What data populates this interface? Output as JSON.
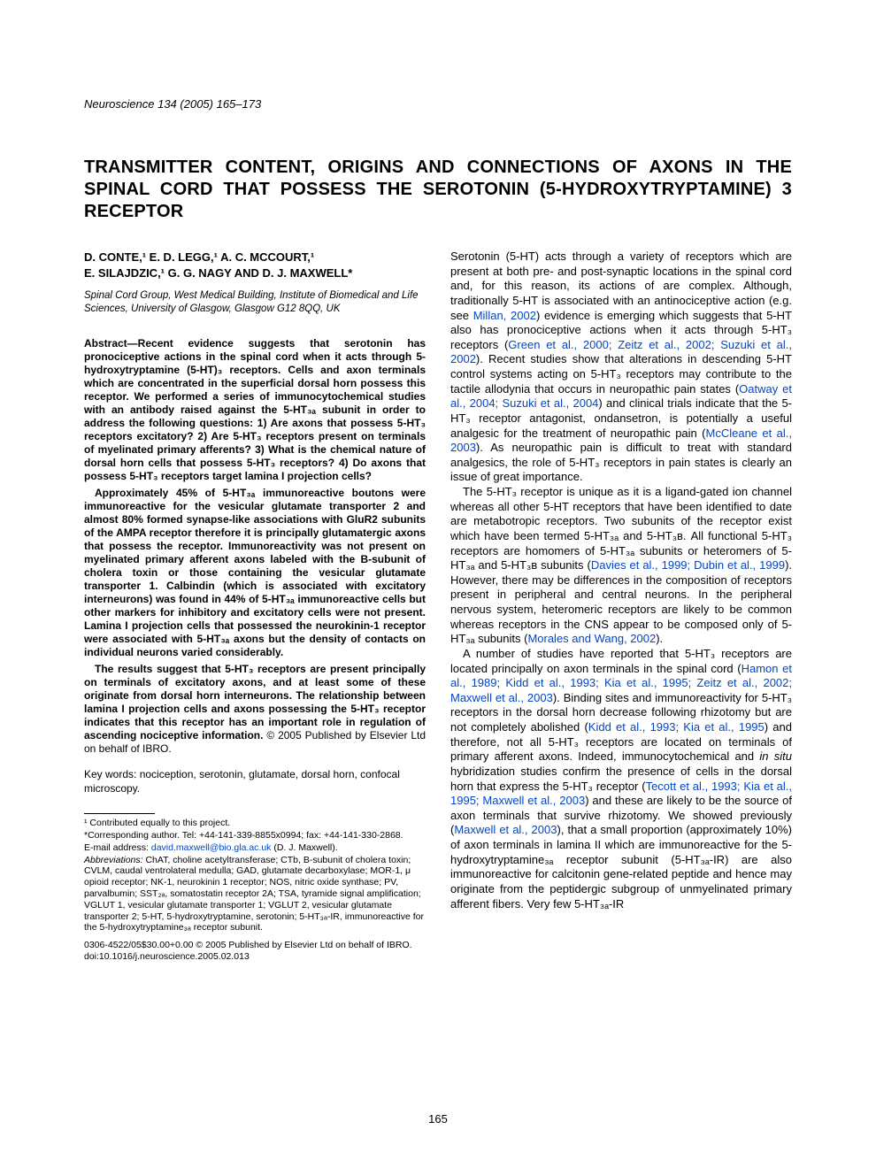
{
  "journal_header": "Neuroscience 134 (2005) 165–173",
  "title": "TRANSMITTER CONTENT, ORIGINS AND CONNECTIONS OF AXONS IN THE SPINAL CORD THAT POSSESS THE SEROTONIN (5-HYDROXYTRYPTAMINE) 3 RECEPTOR",
  "authors_line1": "D. CONTE,¹ E. D. LEGG,¹ A. C. MCCOURT,¹",
  "authors_line2": "E. SILAJDZIC,¹ G. G. NAGY AND D. J. MAXWELL*",
  "affiliation": "Spinal Cord Group, West Medical Building, Institute of Biomedical and Life Sciences, University of Glasgow, Glasgow G12 8QQ, UK",
  "abstract": {
    "para1": "Abstract—Recent evidence suggests that serotonin has pronociceptive actions in the spinal cord when it acts through 5-hydroxytryptamine (5-HT)₃ receptors. Cells and axon terminals which are concentrated in the superficial dorsal horn possess this receptor. We performed a series of immunocytochemical studies with an antibody raised against the 5-HT₃ₐ subunit in order to address the following questions: 1) Are axons that possess 5-HT₃ receptors excitatory? 2) Are 5-HT₃ receptors present on terminals of myelinated primary afferents? 3) What is the chemical nature of dorsal horn cells that possess 5-HT₃ receptors? 4) Do axons that possess 5-HT₃ receptors target lamina I projection cells?",
    "para2": "Approximately 45% of 5-HT₃ₐ immunoreactive boutons were immunoreactive for the vesicular glutamate transporter 2 and almost 80% formed synapse-like associations with GluR2 subunits of the AMPA receptor therefore it is principally glutamatergic axons that possess the receptor. Immunoreactivity was not present on myelinated primary afferent axons labeled with the B-subunit of cholera toxin or those containing the vesicular glutamate transporter 1. Calbindin (which is associated with excitatory interneurons) was found in 44% of 5-HT₃ₐ immunoreactive cells but other markers for inhibitory and excitatory cells were not present. Lamina I projection cells that possessed the neurokinin-1 receptor were associated with 5-HT₃ₐ axons but the density of contacts on individual neurons varied considerably.",
    "para3_prefix": "The results suggest that 5-HT₃ receptors are present principally on terminals of excitatory axons, and at least some of these originate from dorsal horn interneurons. The relationship between lamina I projection cells and axons possessing the 5-HT₃ receptor indicates that this receptor has an important role in regulation of ascending nociceptive information. ",
    "para3_copyright": "© 2005 Published by Elsevier Ltd on behalf of IBRO."
  },
  "keywords_label": "Key words:",
  "keywords_text": " nociception, serotonin, glutamate, dorsal horn, confocal microscopy.",
  "footnotes": {
    "fn1": "¹ Contributed equally to this project.",
    "corr": "*Corresponding author. Tel: +44-141-339-8855x0994; fax: +44-141-330-2868.",
    "email_label": "E-mail address: ",
    "email": "david.maxwell@bio.gla.ac.uk",
    "email_tail": " (D. J. Maxwell).",
    "abbrev_label": "Abbreviations:",
    "abbrev": " ChAT, choline acetyltransferase; CTb, B-subunit of cholera toxin; CVLM, caudal ventrolateral medulla; GAD, glutamate decarboxylase; MOR-1, μ opioid receptor; NK-1, neurokinin 1 receptor; NOS, nitric oxide synthase; PV, parvalbumin; SST₂ₐ, somatostatin receptor 2A; TSA, tyramide signal amplification; VGLUT 1, vesicular glutamate transporter 1; VGLUT 2, vesicular glutamate transporter 2; 5-HT, 5-hydroxytryptamine, serotonin; 5-HT₃ₐ-IR, immunoreactive for the 5-hydroxytryptamine₃ₐ receptor subunit."
  },
  "doi_line1": "0306-4522/05$30.00+0.00 © 2005 Published by Elsevier Ltd on behalf of IBRO.",
  "doi_line2": "doi:10.1016/j.neuroscience.2005.02.013",
  "page_number": "165",
  "body": {
    "p1a": "Serotonin (5-HT) acts through a variety of receptors which are present at both pre- and post-synaptic locations in the spinal cord and, for this reason, its actions of are complex. Although, traditionally 5-HT is associated with an antinociceptive action (e.g. see ",
    "ref1": "Millan, 2002",
    "p1b": ") evidence is emerging which suggests that 5-HT also has pronociceptive actions when it acts through 5-HT₃ receptors (",
    "ref2": "Green et al., 2000; Zeitz et al., 2002; Suzuki et al., 2002",
    "p1c": "). Recent studies show that alterations in descending 5-HT control systems acting on 5-HT₃ receptors may contribute to the tactile allodynia that occurs in neuropathic pain states (",
    "ref3": "Oatway et al., 2004; Suzuki et al., 2004",
    "p1d": ") and clinical trials indicate that the 5-HT₃ receptor antagonist, ondansetron, is potentially a useful analgesic for the treatment of neuropathic pain (",
    "ref4": "McCleane et al., 2003",
    "p1e": "). As neuropathic pain is difficult to treat with standard analgesics, the role of 5-HT₃ receptors in pain states is clearly an issue of great importance.",
    "p2a": "The 5-HT₃ receptor is unique as it is a ligand-gated ion channel whereas all other 5-HT receptors that have been identified to date are metabotropic receptors. Two subunits of the receptor exist which have been termed 5-HT₃ₐ and 5-HT₃в. All functional 5-HT₃ receptors are homomers of 5-HT₃ₐ subunits or heteromers of 5-HT₃ₐ and 5-HT₃в subunits (",
    "ref5": "Davies et al., 1999; Dubin et al., 1999",
    "p2b": "). However, there may be differences in the composition of receptors present in peripheral and central neurons. In the peripheral nervous system, heteromeric receptors are likely to be common whereas receptors in the CNS appear to be composed only of 5-HT₃ₐ subunits (",
    "ref6": "Morales and Wang, 2002",
    "p2c": ").",
    "p3a": "A number of studies have reported that 5-HT₃ receptors are located principally on axon terminals in the spinal cord (",
    "ref7": "Hamon et al., 1989; Kidd et al., 1993; Kia et al., 1995; Zeitz et al., 2002; Maxwell et al., 2003",
    "p3b": "). Binding sites and immunoreactivity for 5-HT₃ receptors in the dorsal horn decrease following rhizotomy but are not completely abolished (",
    "ref8": "Kidd et al., 1993; Kia et al., 1995",
    "p3c": ") and therefore, not all 5-HT₃ receptors are located on terminals of primary afferent axons. Indeed, immunocytochemical and ",
    "p3_insitu": "in situ",
    "p3d": " hybridization studies confirm the presence of cells in the dorsal horn that express the 5-HT₃ receptor (",
    "ref9": "Tecott et al., 1993; Kia et al., 1995; Maxwell et al., 2003",
    "p3e": ") and these are likely to be the source of axon terminals that survive rhizotomy. We showed previously (",
    "ref10": "Maxwell et al., 2003",
    "p3f": "), that a small proportion (approximately 10%) of axon terminals in lamina II which are immunoreactive for the 5-hydroxytryptamine₃ₐ receptor subunit (5-HT₃ₐ-IR) are also immunoreactive for calcitonin gene-related peptide and hence may originate from the peptidergic subgroup of unmyelinated primary afferent fibers. Very few 5-HT₃ₐ-IR"
  }
}
